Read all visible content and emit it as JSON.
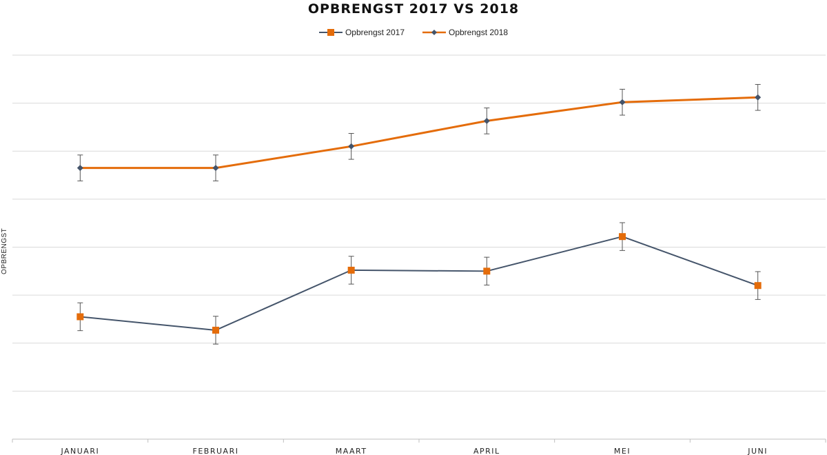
{
  "chart_data": {
    "type": "line",
    "title": "OPBRENGST 2017 VS 2018",
    "xlabel": "",
    "ylabel": "OPBRENGST",
    "categories": [
      "JANUARI",
      "FEBRUARI",
      "MAART",
      "APRIL",
      "MEI",
      "JUNI"
    ],
    "ylim": [
      0,
      8
    ],
    "y_gridlines": [
      1,
      2,
      3,
      4,
      5,
      6,
      7,
      8
    ],
    "y_tick_labels_visible": false,
    "grid": true,
    "legend_position": "top-center",
    "error_bars": true,
    "series": [
      {
        "name": "Opbrengst 2017",
        "values": [
          2.55,
          2.27,
          3.52,
          3.5,
          4.22,
          3.2
        ],
        "errors": [
          0.29,
          0.29,
          0.29,
          0.29,
          0.29,
          0.29
        ],
        "line_color": "#44546a",
        "marker": "square",
        "marker_color": "#e46c0a"
      },
      {
        "name": "Opbrengst 2018",
        "values": [
          5.65,
          5.65,
          6.1,
          6.63,
          7.02,
          7.12
        ],
        "errors": [
          0.27,
          0.27,
          0.27,
          0.27,
          0.27,
          0.27
        ],
        "line_color": "#e46c0a",
        "marker": "diamond",
        "marker_color": "#44546a"
      }
    ],
    "colors": {
      "grid": "#d9d9d9",
      "axis": "#bfbfbf",
      "error_bar": "#555555"
    }
  }
}
